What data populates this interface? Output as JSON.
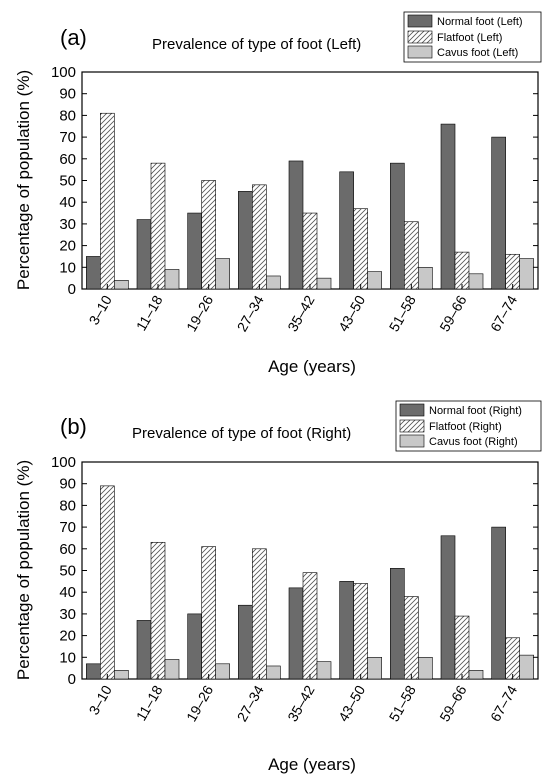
{
  "figure": {
    "panels": [
      {
        "letter": "(a)",
        "title": "Prevalence of type of foot (Left)",
        "xlabel": "Age (years)",
        "ylabel": "Percentage of population (%)"
      },
      {
        "letter": "(b)",
        "title": "Prevalence of type of foot (Right)",
        "xlabel": "Age (years)",
        "ylabel": "Percentage of population (%)"
      }
    ]
  },
  "colors": {
    "normal": "#6b6b6b",
    "flat": "#ffffff",
    "cavus": "#c8c8c8",
    "hatch": "#555555"
  },
  "chart_data": [
    {
      "type": "bar",
      "title": "Prevalence of type of foot (Left)",
      "xlabel": "Age (years)",
      "ylabel": "Percentage of population (%)",
      "ylim": [
        0,
        100
      ],
      "yticks": [
        0,
        10,
        20,
        30,
        40,
        50,
        60,
        70,
        80,
        90,
        100
      ],
      "grid": false,
      "legend_position": "top-right",
      "categories": [
        "3–10",
        "11–18",
        "19–26",
        "27–34",
        "35–42",
        "43–50",
        "51–58",
        "59–66",
        "67–74"
      ],
      "series": [
        {
          "name": "Normal foot (Left)",
          "pattern": "solid-dark",
          "values": [
            15,
            32,
            35,
            45,
            59,
            54,
            58,
            76,
            70
          ]
        },
        {
          "name": "Flatfoot (Left)",
          "pattern": "hatched",
          "values": [
            81,
            58,
            50,
            48,
            35,
            37,
            31,
            17,
            16
          ]
        },
        {
          "name": "Cavus foot (Left)",
          "pattern": "solid-light",
          "values": [
            4,
            9,
            14,
            6,
            5,
            8,
            10,
            7,
            14
          ]
        }
      ]
    },
    {
      "type": "bar",
      "title": "Prevalence of type of foot (Right)",
      "xlabel": "Age (years)",
      "ylabel": "Percentage of population (%)",
      "ylim": [
        0,
        100
      ],
      "yticks": [
        0,
        10,
        20,
        30,
        40,
        50,
        60,
        70,
        80,
        90,
        100
      ],
      "grid": false,
      "legend_position": "top-right",
      "categories": [
        "3–10",
        "11–18",
        "19–26",
        "27–34",
        "35–42",
        "43–50",
        "51–58",
        "59–66",
        "67–74"
      ],
      "series": [
        {
          "name": "Normal foot (Right)",
          "pattern": "solid-dark",
          "values": [
            7,
            27,
            30,
            34,
            42,
            45,
            51,
            66,
            70
          ]
        },
        {
          "name": "Flatfoot (Right)",
          "pattern": "hatched",
          "values": [
            89,
            63,
            61,
            60,
            49,
            44,
            38,
            29,
            19
          ]
        },
        {
          "name": "Cavus foot (Right)",
          "pattern": "solid-light",
          "values": [
            4,
            9,
            7,
            6,
            8,
            10,
            10,
            4,
            11
          ]
        }
      ]
    }
  ]
}
